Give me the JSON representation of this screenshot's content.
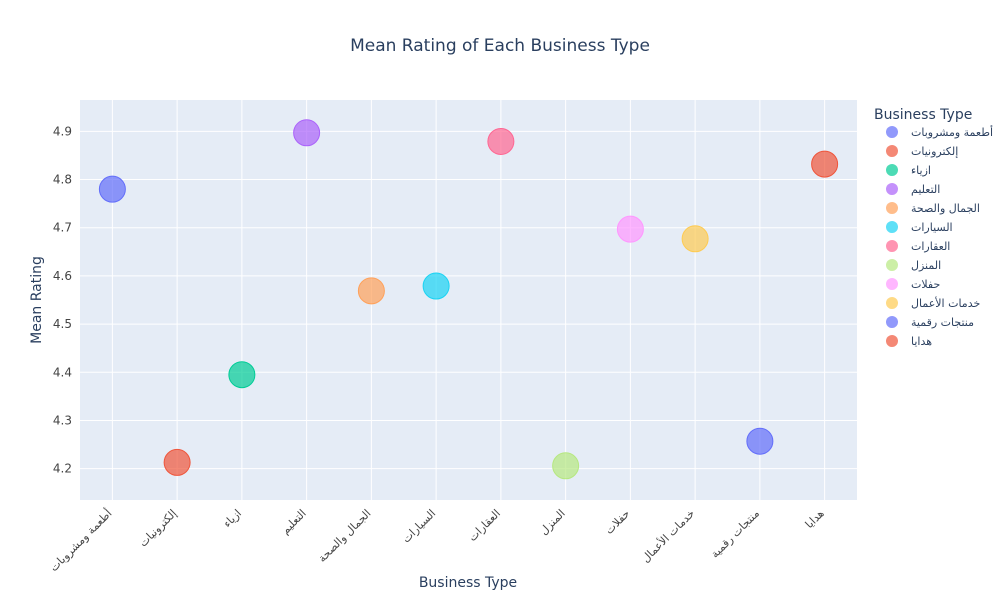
{
  "chart_data": {
    "type": "scatter",
    "title": "Mean Rating of Each Business Type",
    "xlabel": "Business Type",
    "ylabel": "Mean Rating",
    "ylim": [
      4.135,
      4.965
    ],
    "yticks": [
      4.2,
      4.3,
      4.4,
      4.5,
      4.6,
      4.7,
      4.8,
      4.9
    ],
    "grid": true,
    "legend_title": "Business Type",
    "legend_position": "right",
    "categories": [
      "أطعمة ومشروبات",
      "إلكترونيات",
      "ازياء",
      "التعليم",
      "الجمال والصحة",
      "السيارات",
      "العقارات",
      "المنزل",
      "حفلات",
      "خدمات الأعمال",
      "منتجات رقمية",
      "هدايا"
    ],
    "series": [
      {
        "name": "أطعمة ومشروبات",
        "x": "أطعمة ومشروبات",
        "y": 4.78,
        "color": "#636efa"
      },
      {
        "name": "إلكترونيات",
        "x": "إلكترونيات",
        "y": 4.213,
        "color": "#EF553B"
      },
      {
        "name": "ازياء",
        "x": "ازياء",
        "y": 4.395,
        "color": "#00cc96"
      },
      {
        "name": "التعليم",
        "x": "التعليم",
        "y": 4.897,
        "color": "#ab63fa"
      },
      {
        "name": "الجمال والصحة",
        "x": "الجمال والصحة",
        "y": 4.569,
        "color": "#FFA15A"
      },
      {
        "name": "السيارات",
        "x": "السيارات",
        "y": 4.579,
        "color": "#19d3f3"
      },
      {
        "name": "العقارات",
        "x": "العقارات",
        "y": 4.879,
        "color": "#FF6692"
      },
      {
        "name": "المنزل",
        "x": "المنزل",
        "y": 4.206,
        "color": "#B6E880"
      },
      {
        "name": "حفلات",
        "x": "حفلات",
        "y": 4.697,
        "color": "#FF97FF"
      },
      {
        "name": "خدمات الأعمال",
        "x": "خدمات الأعمال",
        "y": 4.677,
        "color": "#FECB52"
      },
      {
        "name": "منتجات رقمية",
        "x": "منتجات رقمية",
        "y": 4.257,
        "color": "#636efa"
      },
      {
        "name": "هدايا",
        "x": "هدايا",
        "y": 4.832,
        "color": "#EF553B"
      }
    ]
  },
  "colors": {
    "plot_background": "#e5ecf6",
    "gridline": "#ffffff",
    "text": "#2a3f5f",
    "tick_text": "#444444"
  }
}
